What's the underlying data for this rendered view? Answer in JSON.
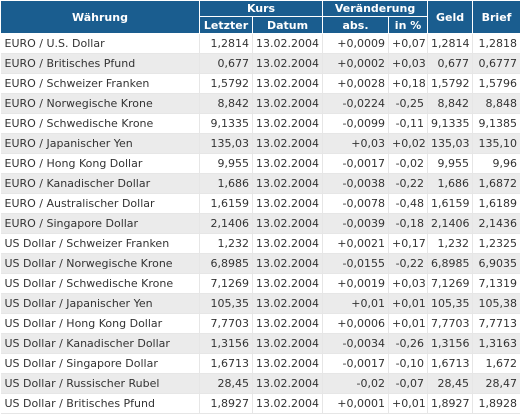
{
  "header": {
    "currency": "Währung",
    "rate_group": "Kurs",
    "change_group": "Veränderung",
    "last": "Letzter",
    "date": "Datum",
    "abs": "abs.",
    "pct": "in %",
    "bid": "Geld",
    "ask": "Brief"
  },
  "colors": {
    "header_bg": "#1a5d8f",
    "positive": "#0a8a14",
    "negative": "#d41010",
    "row_shade": "#ebebeb"
  },
  "rows": [
    {
      "name": "EURO / U.S. Dollar",
      "last": "1,2814",
      "date": "13.02.2004",
      "abs": "+0,0009",
      "pct": "+0,07",
      "bid": "1,2814",
      "ask": "1,2818",
      "abs_dir": "pos",
      "pct_dir": "pos"
    },
    {
      "name": "EURO / Britisches Pfund",
      "last": "0,677",
      "date": "13.02.2004",
      "abs": "+0,0002",
      "pct": "+0,03",
      "bid": "0,677",
      "ask": "0,6777",
      "abs_dir": "pos",
      "pct_dir": "pos"
    },
    {
      "name": "EURO / Schweizer Franken",
      "last": "1,5792",
      "date": "13.02.2004",
      "abs": "+0,0028",
      "pct": "+0,18",
      "bid": "1,5792",
      "ask": "1,5796",
      "abs_dir": "pos",
      "pct_dir": "pos"
    },
    {
      "name": "EURO / Norwegische Krone",
      "last": "8,842",
      "date": "13.02.2004",
      "abs": "-0,0224",
      "pct": "-0,25",
      "bid": "8,842",
      "ask": "8,848",
      "abs_dir": "neg",
      "pct_dir": "neg"
    },
    {
      "name": "EURO / Schwedische Krone",
      "last": "9,1335",
      "date": "13.02.2004",
      "abs": "-0,0099",
      "pct": "-0,11",
      "bid": "9,1335",
      "ask": "9,1385",
      "abs_dir": "neg",
      "pct_dir": "neg"
    },
    {
      "name": "EURO / Japanischer Yen",
      "last": "135,03",
      "date": "13.02.2004",
      "abs": "+0,03",
      "pct": "+0,02",
      "bid": "135,03",
      "ask": "135,10",
      "abs_dir": "pos",
      "pct_dir": "pos"
    },
    {
      "name": "EURO / Hong Kong Dollar",
      "last": "9,955",
      "date": "13.02.2004",
      "abs": "-0,0017",
      "pct": "-0,02",
      "bid": "9,955",
      "ask": "9,96",
      "abs_dir": "neg",
      "pct_dir": "neg"
    },
    {
      "name": "EURO / Kanadischer Dollar",
      "last": "1,686",
      "date": "13.02.2004",
      "abs": "-0,0038",
      "pct": "-0,22",
      "bid": "1,686",
      "ask": "1,6872",
      "abs_dir": "neg",
      "pct_dir": "neg"
    },
    {
      "name": "EURO / Australischer Dollar",
      "last": "1,6159",
      "date": "13.02.2004",
      "abs": "-0,0078",
      "pct": "-0,48",
      "bid": "1,6159",
      "ask": "1,6189",
      "abs_dir": "neg",
      "pct_dir": "neg"
    },
    {
      "name": "EURO / Singapore Dollar",
      "last": "2,1406",
      "date": "13.02.2004",
      "abs": "-0,0039",
      "pct": "-0,18",
      "bid": "2,1406",
      "ask": "2,1436",
      "abs_dir": "neg",
      "pct_dir": "neg"
    },
    {
      "name": "US Dollar / Schweizer Franken",
      "last": "1,232",
      "date": "13.02.2004",
      "abs": "+0,0021",
      "pct": "+0,17",
      "bid": "1,232",
      "ask": "1,2325",
      "abs_dir": "pos",
      "pct_dir": "pos"
    },
    {
      "name": "US Dollar / Norwegische Krone",
      "last": "6,8985",
      "date": "13.02.2004",
      "abs": "-0,0155",
      "pct": "-0,22",
      "bid": "6,8985",
      "ask": "6,9035",
      "abs_dir": "neg",
      "pct_dir": "neg"
    },
    {
      "name": "US Dollar / Schwedische Krone",
      "last": "7,1269",
      "date": "13.02.2004",
      "abs": "+0,0019",
      "pct": "+0,03",
      "bid": "7,1269",
      "ask": "7,1319",
      "abs_dir": "pos",
      "pct_dir": "pos"
    },
    {
      "name": "US Dollar / Japanischer Yen",
      "last": "105,35",
      "date": "13.02.2004",
      "abs": "+0,01",
      "pct": "+0,01",
      "bid": "105,35",
      "ask": "105,38",
      "abs_dir": "pos",
      "pct_dir": "plain"
    },
    {
      "name": "US Dollar / Hong Kong Dollar",
      "last": "7,7703",
      "date": "13.02.2004",
      "abs": "+0,0006",
      "pct": "+0,01",
      "bid": "7,7703",
      "ask": "7,7713",
      "abs_dir": "pos",
      "pct_dir": "plain"
    },
    {
      "name": "US Dollar / Kanadischer Dollar",
      "last": "1,3156",
      "date": "13.02.2004",
      "abs": "-0,0034",
      "pct": "-0,26",
      "bid": "1,3156",
      "ask": "1,3163",
      "abs_dir": "neg",
      "pct_dir": "neg"
    },
    {
      "name": "US Dollar / Singapore Dollar",
      "last": "1,6713",
      "date": "13.02.2004",
      "abs": "-0,0017",
      "pct": "-0,10",
      "bid": "1,6713",
      "ask": "1,672",
      "abs_dir": "neg",
      "pct_dir": "neg"
    },
    {
      "name": "US Dollar / Russischer Rubel",
      "last": "28,45",
      "date": "13.02.2004",
      "abs": "-0,02",
      "pct": "-0,07",
      "bid": "28,45",
      "ask": "28,47",
      "abs_dir": "neg",
      "pct_dir": "neg"
    },
    {
      "name": "US Dollar / Britisches Pfund",
      "last": "1,8927",
      "date": "13.02.2004",
      "abs": "+0,0001",
      "pct": "+0,01",
      "bid": "1,8927",
      "ask": "1,8928",
      "abs_dir": "pos",
      "pct_dir": "plain"
    }
  ]
}
